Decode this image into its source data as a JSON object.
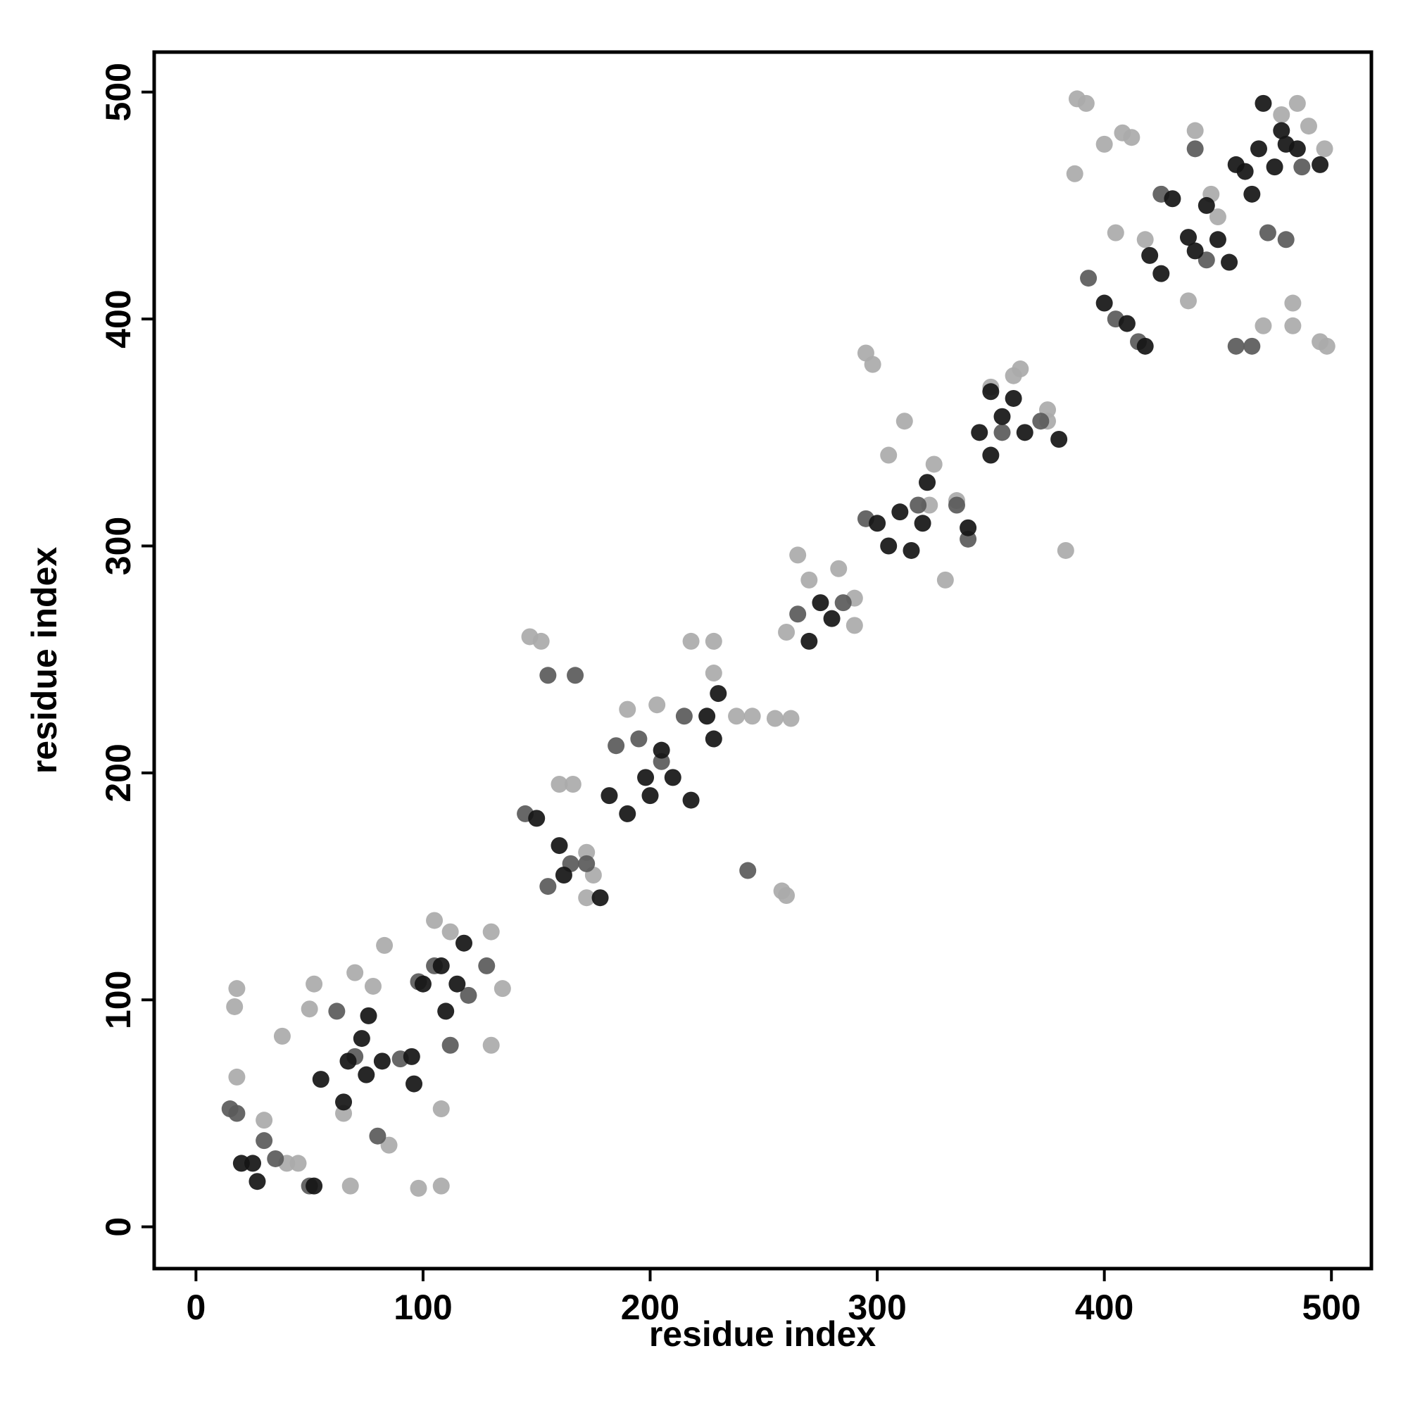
{
  "chart_data": {
    "type": "scatter",
    "x_label": "residue index",
    "y_label": "residue index",
    "xlim": [
      -18.4,
      517.6
    ],
    "ylim": [
      -18.4,
      517.6
    ],
    "xticks": [
      0,
      100,
      200,
      300,
      400,
      500
    ],
    "yticks": [
      0,
      100,
      200,
      300,
      400,
      500
    ],
    "grid": false,
    "series": [
      {
        "color": "#aaaaaa",
        "x": [
          18,
          17,
          18,
          30,
          38,
          40,
          45,
          52,
          50,
          65,
          68,
          70,
          78,
          83,
          85,
          98,
          108,
          105,
          108,
          112,
          130,
          135,
          130,
          147,
          152,
          160,
          166,
          175,
          172,
          190,
          203,
          218,
          228,
          228,
          245,
          258,
          260,
          255,
          262,
          265,
          270,
          283,
          290,
          295,
          298,
          305,
          312,
          325,
          330,
          335,
          350,
          360,
          363,
          375,
          383,
          388,
          392,
          387,
          400,
          408,
          412,
          405,
          418,
          437,
          450,
          447,
          440,
          478,
          485,
          483,
          483,
          490,
          497,
          495,
          498,
          470,
          238,
          172,
          260,
          290,
          375,
          323
        ],
        "y": [
          105,
          97,
          66,
          47,
          84,
          28,
          28,
          107,
          96,
          50,
          18,
          112,
          106,
          124,
          36,
          17,
          18,
          135,
          52,
          130,
          130,
          105,
          80,
          260,
          258,
          195,
          195,
          155,
          165,
          228,
          230,
          258,
          244,
          258,
          225,
          148,
          146,
          224,
          224,
          296,
          285,
          290,
          265,
          385,
          380,
          340,
          355,
          336,
          285,
          320,
          370,
          375,
          378,
          360,
          298,
          497,
          495,
          464,
          477,
          482,
          480,
          438,
          435,
          408,
          445,
          455,
          483,
          490,
          495,
          407,
          397,
          485,
          475,
          390,
          388,
          397,
          225,
          145,
          262,
          277,
          355,
          318
        ]
      },
      {
        "color": "#5a5a5a",
        "x": [
          15,
          18,
          30,
          35,
          50,
          62,
          70,
          80,
          90,
          98,
          105,
          112,
          120,
          128,
          145,
          155,
          165,
          172,
          185,
          195,
          205,
          215,
          243,
          265,
          285,
          295,
          318,
          335,
          340,
          355,
          372,
          393,
          405,
          415,
          425,
          440,
          445,
          458,
          465,
          472,
          480,
          487,
          155,
          167
        ],
        "y": [
          52,
          50,
          38,
          30,
          18,
          95,
          75,
          40,
          74,
          108,
          115,
          80,
          102,
          115,
          182,
          150,
          160,
          160,
          212,
          215,
          205,
          225,
          157,
          270,
          275,
          312,
          318,
          318,
          303,
          350,
          355,
          418,
          400,
          390,
          455,
          475,
          426,
          388,
          388,
          438,
          435,
          467,
          243,
          243
        ]
      },
      {
        "color": "#151515",
        "x": [
          20,
          27,
          25,
          52,
          55,
          65,
          67,
          75,
          76,
          73,
          82,
          96,
          95,
          100,
          108,
          110,
          115,
          118,
          150,
          160,
          162,
          178,
          182,
          190,
          198,
          200,
          205,
          210,
          218,
          225,
          230,
          228,
          270,
          275,
          280,
          300,
          305,
          310,
          315,
          322,
          320,
          340,
          345,
          350,
          355,
          350,
          360,
          365,
          380,
          400,
          410,
          418,
          420,
          425,
          430,
          437,
          440,
          445,
          450,
          455,
          458,
          462,
          465,
          468,
          475,
          478,
          470,
          495,
          480,
          485
        ],
        "y": [
          28,
          20,
          28,
          18,
          65,
          55,
          73,
          67,
          93,
          83,
          73,
          63,
          75,
          107,
          115,
          95,
          107,
          125,
          180,
          168,
          155,
          145,
          190,
          182,
          198,
          190,
          210,
          198,
          188,
          225,
          235,
          215,
          258,
          275,
          268,
          310,
          300,
          315,
          298,
          328,
          310,
          308,
          350,
          340,
          357,
          368,
          365,
          350,
          347,
          407,
          398,
          388,
          428,
          420,
          453,
          436,
          430,
          450,
          435,
          425,
          468,
          465,
          455,
          475,
          467,
          483,
          495,
          468,
          477,
          475
        ]
      }
    ]
  }
}
